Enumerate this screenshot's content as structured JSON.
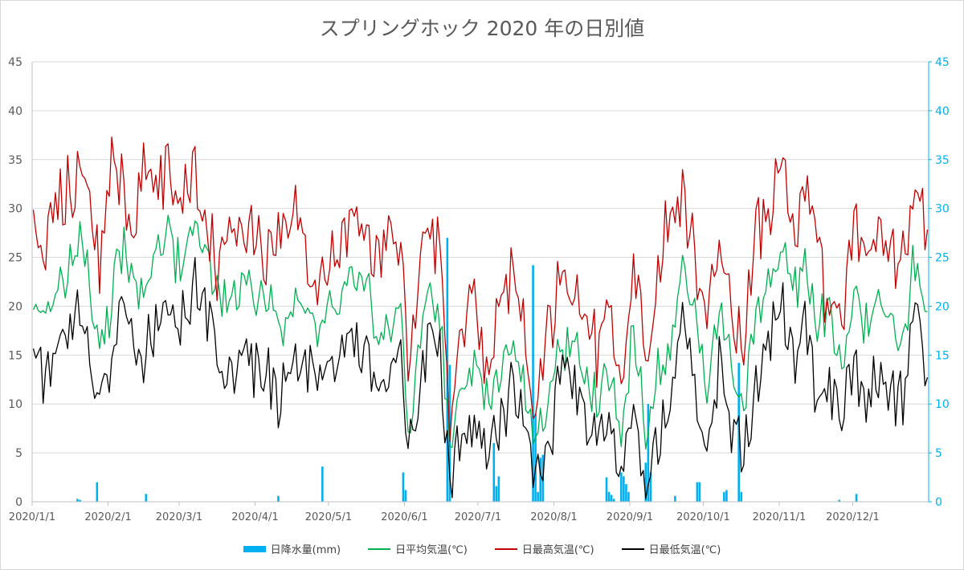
{
  "chart_data": {
    "type": "bar+line",
    "title": "スプリングホック 2020 年の日別値",
    "left_axis": {
      "ticks": [
        "0",
        "5",
        "10",
        "15",
        "20",
        "25",
        "30",
        "35",
        "40",
        "45"
      ],
      "min": 0,
      "max": 45
    },
    "right_axis": {
      "ticks": [
        "0",
        "5",
        "10",
        "15",
        "20",
        "25",
        "30",
        "35",
        "40",
        "45"
      ],
      "min": 0,
      "max": 45
    },
    "x_ticks": [
      "2020/1/1",
      "2020/2/1",
      "2020/3/1",
      "2020/4/1",
      "2020/5/1",
      "2020/6/1",
      "2020/7/1",
      "2020/8/1",
      "2020/9/1",
      "2020/10/1",
      "2020/11/1",
      "2020/12/1"
    ],
    "x_tick_days": [
      0,
      31,
      60,
      91,
      121,
      152,
      182,
      213,
      244,
      274,
      305,
      335
    ],
    "days": 366,
    "grid": true,
    "legend_position": "bottom",
    "colors": {
      "precip": "#00b0f0",
      "avg": "#00b050",
      "max": "#c00000",
      "min": "#000000"
    },
    "series": [
      {
        "name": "日降水量(mm)",
        "type": "bar",
        "axis": "right",
        "points": [
          [
            18,
            0.3
          ],
          [
            19,
            0.2
          ],
          [
            26,
            2.0
          ],
          [
            46,
            0.8
          ],
          [
            100,
            0.6
          ],
          [
            118,
            3.6
          ],
          [
            151,
            3.0
          ],
          [
            152,
            1.2
          ],
          [
            169,
            27.0
          ],
          [
            170,
            14.0
          ],
          [
            188,
            6.0
          ],
          [
            189,
            1.6
          ],
          [
            190,
            2.6
          ],
          [
            204,
            24.2
          ],
          [
            205,
            9.0
          ],
          [
            206,
            1.0
          ],
          [
            207,
            4.5
          ],
          [
            208,
            4.8
          ],
          [
            234,
            2.5
          ],
          [
            235,
            1.0
          ],
          [
            236,
            0.7
          ],
          [
            237,
            0.3
          ],
          [
            240,
            3.0
          ],
          [
            241,
            2.6
          ],
          [
            242,
            1.8
          ],
          [
            243,
            1.0
          ],
          [
            250,
            4.0
          ],
          [
            251,
            10.0
          ],
          [
            252,
            3.0
          ],
          [
            262,
            0.6
          ],
          [
            271,
            2.0
          ],
          [
            272,
            2.0
          ],
          [
            282,
            1.0
          ],
          [
            283,
            1.2
          ],
          [
            288,
            14.2
          ],
          [
            289,
            1.0
          ],
          [
            329,
            0.2
          ],
          [
            336,
            0.8
          ]
        ]
      },
      {
        "name": "日平均気温(℃)",
        "type": "line",
        "axis": "left",
        "anchors": [
          [
            0,
            21
          ],
          [
            5,
            19
          ],
          [
            10,
            22
          ],
          [
            15,
            24
          ],
          [
            20,
            28
          ],
          [
            24,
            18
          ],
          [
            30,
            17
          ],
          [
            35,
            26
          ],
          [
            40,
            25
          ],
          [
            45,
            20
          ],
          [
            50,
            25
          ],
          [
            55,
            27
          ],
          [
            60,
            24
          ],
          [
            65,
            28
          ],
          [
            70,
            26
          ],
          [
            75,
            22
          ],
          [
            80,
            20
          ],
          [
            85,
            23
          ],
          [
            90,
            22
          ],
          [
            95,
            22
          ],
          [
            100,
            18
          ],
          [
            105,
            20
          ],
          [
            110,
            21
          ],
          [
            115,
            17
          ],
          [
            120,
            20
          ],
          [
            125,
            21
          ],
          [
            130,
            22
          ],
          [
            135,
            23
          ],
          [
            140,
            17
          ],
          [
            145,
            18
          ],
          [
            150,
            20
          ],
          [
            153,
            6
          ],
          [
            158,
            17
          ],
          [
            162,
            22
          ],
          [
            166,
            18
          ],
          [
            170,
            6
          ],
          [
            175,
            12
          ],
          [
            180,
            15
          ],
          [
            185,
            10
          ],
          [
            190,
            13
          ],
          [
            195,
            15
          ],
          [
            200,
            13
          ],
          [
            205,
            6
          ],
          [
            210,
            11
          ],
          [
            215,
            16
          ],
          [
            220,
            16
          ],
          [
            225,
            13
          ],
          [
            230,
            10
          ],
          [
            235,
            14
          ],
          [
            240,
            7
          ],
          [
            245,
            17
          ],
          [
            250,
            7
          ],
          [
            255,
            13
          ],
          [
            260,
            15
          ],
          [
            265,
            24
          ],
          [
            270,
            20
          ],
          [
            275,
            12
          ],
          [
            280,
            20
          ],
          [
            285,
            14
          ],
          [
            290,
            10
          ],
          [
            295,
            18
          ],
          [
            300,
            22
          ],
          [
            305,
            26
          ],
          [
            310,
            21
          ],
          [
            315,
            24
          ],
          [
            320,
            18
          ],
          [
            325,
            20
          ],
          [
            330,
            15
          ],
          [
            335,
            21
          ],
          [
            340,
            18
          ],
          [
            345,
            20
          ],
          [
            350,
            18
          ],
          [
            355,
            17
          ],
          [
            360,
            25
          ],
          [
            365,
            20
          ]
        ]
      },
      {
        "name": "日最高気温(℃)",
        "type": "line",
        "axis": "left",
        "anchors": [
          [
            0,
            28
          ],
          [
            5,
            26
          ],
          [
            10,
            31
          ],
          [
            15,
            32
          ],
          [
            20,
            33
          ],
          [
            24,
            28
          ],
          [
            27,
            23
          ],
          [
            32,
            37
          ],
          [
            37,
            32
          ],
          [
            40,
            28
          ],
          [
            45,
            34
          ],
          [
            50,
            32
          ],
          [
            55,
            35
          ],
          [
            60,
            30
          ],
          [
            65,
            34
          ],
          [
            70,
            30
          ],
          [
            75,
            24
          ],
          [
            80,
            29
          ],
          [
            85,
            29
          ],
          [
            90,
            28
          ],
          [
            95,
            25
          ],
          [
            100,
            26
          ],
          [
            105,
            29
          ],
          [
            110,
            27
          ],
          [
            115,
            21
          ],
          [
            120,
            25
          ],
          [
            125,
            26
          ],
          [
            130,
            29
          ],
          [
            135,
            28
          ],
          [
            140,
            25
          ],
          [
            145,
            28
          ],
          [
            150,
            27
          ],
          [
            153,
            11
          ],
          [
            158,
            23
          ],
          [
            162,
            28
          ],
          [
            166,
            26
          ],
          [
            170,
            8
          ],
          [
            175,
            17
          ],
          [
            180,
            22
          ],
          [
            185,
            12
          ],
          [
            190,
            19
          ],
          [
            195,
            23
          ],
          [
            200,
            18
          ],
          [
            205,
            8
          ],
          [
            210,
            18
          ],
          [
            215,
            22
          ],
          [
            220,
            24
          ],
          [
            225,
            18
          ],
          [
            230,
            15
          ],
          [
            235,
            20
          ],
          [
            240,
            12
          ],
          [
            245,
            24
          ],
          [
            250,
            14
          ],
          [
            255,
            24
          ],
          [
            260,
            29
          ],
          [
            265,
            32
          ],
          [
            270,
            25
          ],
          [
            275,
            18
          ],
          [
            280,
            27
          ],
          [
            285,
            20
          ],
          [
            290,
            16
          ],
          [
            295,
            28
          ],
          [
            300,
            30
          ],
          [
            305,
            35
          ],
          [
            310,
            27
          ],
          [
            315,
            33
          ],
          [
            320,
            26
          ],
          [
            325,
            20
          ],
          [
            330,
            18
          ],
          [
            335,
            29
          ],
          [
            340,
            24
          ],
          [
            345,
            28
          ],
          [
            350,
            24
          ],
          [
            355,
            26
          ],
          [
            360,
            33
          ],
          [
            365,
            28
          ]
        ]
      },
      {
        "name": "日最低気温(℃)",
        "type": "line",
        "axis": "left",
        "anchors": [
          [
            0,
            14
          ],
          [
            5,
            12
          ],
          [
            10,
            16
          ],
          [
            15,
            17
          ],
          [
            20,
            21
          ],
          [
            24,
            12
          ],
          [
            30,
            11
          ],
          [
            35,
            20
          ],
          [
            40,
            17
          ],
          [
            45,
            14
          ],
          [
            50,
            18
          ],
          [
            55,
            20
          ],
          [
            60,
            19
          ],
          [
            65,
            22
          ],
          [
            70,
            21
          ],
          [
            75,
            14
          ],
          [
            80,
            13
          ],
          [
            85,
            15
          ],
          [
            90,
            14
          ],
          [
            95,
            14
          ],
          [
            100,
            10
          ],
          [
            105,
            13
          ],
          [
            110,
            15
          ],
          [
            115,
            12
          ],
          [
            120,
            14
          ],
          [
            125,
            15
          ],
          [
            130,
            16
          ],
          [
            135,
            16
          ],
          [
            140,
            11
          ],
          [
            145,
            12
          ],
          [
            150,
            16
          ],
          [
            153,
            4
          ],
          [
            158,
            13
          ],
          [
            162,
            18
          ],
          [
            166,
            15
          ],
          [
            170,
            3
          ],
          [
            175,
            7
          ],
          [
            180,
            8
          ],
          [
            185,
            6
          ],
          [
            190,
            7
          ],
          [
            195,
            12
          ],
          [
            200,
            9
          ],
          [
            205,
            3
          ],
          [
            210,
            5
          ],
          [
            215,
            13
          ],
          [
            220,
            13
          ],
          [
            225,
            9
          ],
          [
            230,
            6
          ],
          [
            235,
            8
          ],
          [
            240,
            2
          ],
          [
            245,
            10
          ],
          [
            250,
            1
          ],
          [
            255,
            6
          ],
          [
            260,
            11
          ],
          [
            265,
            19
          ],
          [
            270,
            12
          ],
          [
            275,
            6
          ],
          [
            280,
            14
          ],
          [
            285,
            8
          ],
          [
            290,
            5
          ],
          [
            295,
            12
          ],
          [
            300,
            16
          ],
          [
            305,
            20
          ],
          [
            310,
            14
          ],
          [
            315,
            19
          ],
          [
            320,
            10
          ],
          [
            325,
            12
          ],
          [
            330,
            9
          ],
          [
            335,
            15
          ],
          [
            340,
            10
          ],
          [
            345,
            14
          ],
          [
            350,
            11
          ],
          [
            355,
            10
          ],
          [
            360,
            20
          ],
          [
            365,
            13
          ]
        ]
      }
    ]
  }
}
